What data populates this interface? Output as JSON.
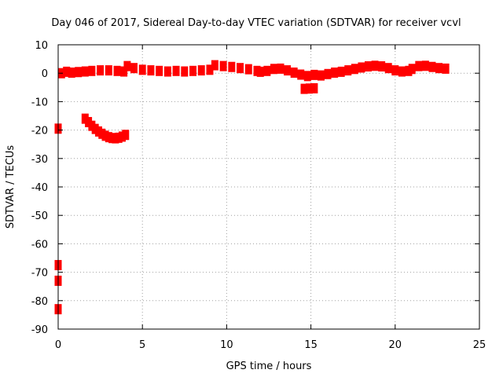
{
  "chart_data": {
    "type": "scatter",
    "title": "Day 046 of 2017, Sidereal Day-to-day VTEC variation (SDTVAR) for receiver vcvl",
    "xlabel": "GPS time / hours",
    "ylabel": "SDTVAR / TECUs",
    "xlim": [
      0,
      25
    ],
    "ylim": [
      -90,
      10
    ],
    "xticks": [
      0,
      5,
      10,
      15,
      20,
      25
    ],
    "yticks": [
      10,
      0,
      -10,
      -20,
      -30,
      -40,
      -50,
      -60,
      -70,
      -80,
      -90
    ],
    "grid": true,
    "point_color": "#ff0000",
    "series": [
      {
        "values": [
          [
            0.2,
            0.0
          ],
          [
            0.5,
            0.5
          ],
          [
            0.8,
            0.2
          ],
          [
            1.2,
            0.4
          ],
          [
            1.6,
            0.6
          ],
          [
            2.0,
            0.8
          ],
          [
            2.5,
            1.0
          ],
          [
            3.0,
            1.0
          ],
          [
            3.5,
            0.8
          ],
          [
            3.9,
            0.6
          ],
          [
            4.1,
            2.5
          ],
          [
            4.5,
            1.8
          ],
          [
            5.0,
            1.2
          ],
          [
            5.5,
            1.0
          ],
          [
            6.0,
            0.8
          ],
          [
            6.5,
            0.6
          ],
          [
            7.0,
            0.8
          ],
          [
            7.5,
            0.6
          ],
          [
            8.0,
            0.8
          ],
          [
            8.5,
            1.0
          ],
          [
            9.0,
            1.2
          ],
          [
            9.3,
            2.8
          ],
          [
            9.8,
            2.5
          ],
          [
            10.3,
            2.2
          ],
          [
            10.8,
            1.8
          ],
          [
            11.3,
            1.4
          ],
          [
            11.8,
            0.8
          ],
          [
            12.0,
            0.5
          ],
          [
            12.4,
            0.8
          ],
          [
            12.8,
            1.5
          ],
          [
            13.2,
            1.6
          ],
          [
            13.6,
            1.0
          ],
          [
            14.0,
            0.2
          ],
          [
            14.4,
            -0.5
          ],
          [
            14.8,
            -1.0
          ],
          [
            15.2,
            -0.6
          ],
          [
            15.6,
            -0.8
          ],
          [
            16.0,
            -0.3
          ],
          [
            16.4,
            0.2
          ],
          [
            16.8,
            0.5
          ],
          [
            17.2,
            1.0
          ],
          [
            17.6,
            1.5
          ],
          [
            18.0,
            2.0
          ],
          [
            18.4,
            2.4
          ],
          [
            18.8,
            2.6
          ],
          [
            19.2,
            2.4
          ],
          [
            19.6,
            1.8
          ],
          [
            20.0,
            1.0
          ],
          [
            20.4,
            0.6
          ],
          [
            20.8,
            0.8
          ],
          [
            21.0,
            1.5
          ],
          [
            21.4,
            2.5
          ],
          [
            21.8,
            2.6
          ],
          [
            22.2,
            2.2
          ],
          [
            22.6,
            1.8
          ],
          [
            23.0,
            1.6
          ],
          [
            14.6,
            -5.5
          ],
          [
            14.9,
            -5.4
          ],
          [
            15.2,
            -5.3
          ],
          [
            1.6,
            -16.0
          ],
          [
            1.8,
            -17.2
          ],
          [
            2.0,
            -18.5
          ],
          [
            2.2,
            -19.6
          ],
          [
            2.4,
            -20.5
          ],
          [
            2.6,
            -21.3
          ],
          [
            2.8,
            -22.0
          ],
          [
            3.0,
            -22.5
          ],
          [
            3.2,
            -22.8
          ],
          [
            3.4,
            -22.9
          ],
          [
            3.6,
            -22.7
          ],
          [
            3.8,
            -22.3
          ],
          [
            4.0,
            -21.7
          ],
          [
            0.0,
            -19.5
          ],
          [
            0.0,
            -67.5
          ],
          [
            0.0,
            -73.0
          ],
          [
            0.0,
            -83.0
          ]
        ]
      }
    ]
  }
}
